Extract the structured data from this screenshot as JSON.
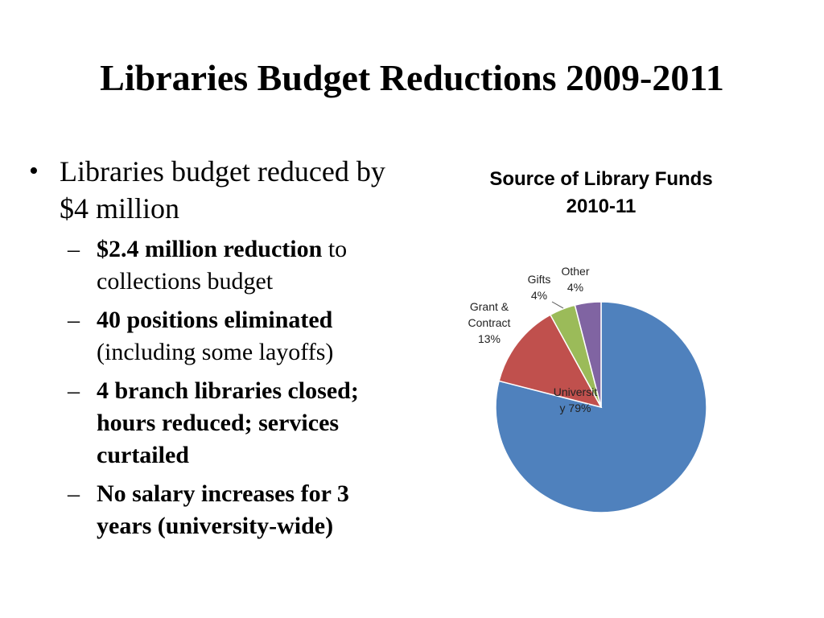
{
  "slide": {
    "title": "Libraries Budget Reductions 2009-2011"
  },
  "bullets": {
    "main": {
      "symbol": "•",
      "text": "Libraries budget reduced by $4 million"
    },
    "sub_symbol": "–",
    "sub": [
      {
        "bold": "$2.4 million reduction",
        "normal": " to collections budget"
      },
      {
        "bold": "40 positions eliminated",
        "normal": " (including some layoffs)"
      },
      {
        "bold": "4 branch libraries closed; hours reduced; services curtailed",
        "normal": ""
      },
      {
        "bold": "No salary increases for 3 years (university-wide)",
        "normal": ""
      }
    ]
  },
  "chart_data": {
    "type": "pie",
    "title_line1": "Source of Library Funds",
    "title_line2": "2010-11",
    "slices": [
      {
        "name": "University",
        "label_line1": "Universit",
        "label_line2": "y 79%",
        "value": 79,
        "color": "#4F81BD"
      },
      {
        "name": "Grant & Contract",
        "label_line1": "Grant &",
        "label_line2": "Contract",
        "label_line3": "13%",
        "value": 13,
        "color": "#C0504D"
      },
      {
        "name": "Gifts",
        "label_line1": "Gifts",
        "label_line2": "4%",
        "value": 4,
        "color": "#9BBB59"
      },
      {
        "name": "Other",
        "label_line1": "Other",
        "label_line2": "4%",
        "value": 4,
        "color": "#8064A2"
      }
    ]
  }
}
